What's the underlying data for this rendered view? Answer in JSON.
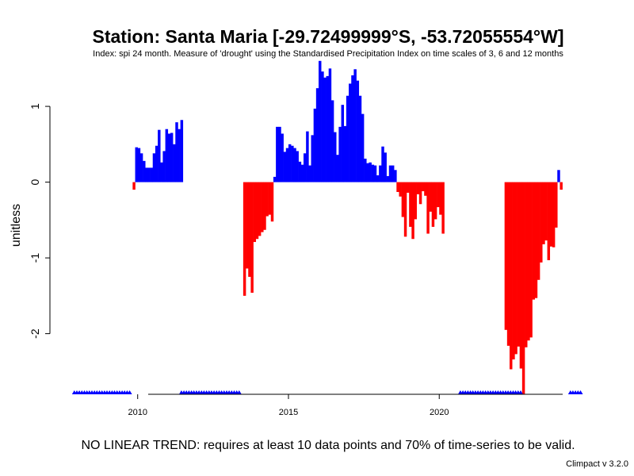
{
  "chart_data": {
    "type": "bar",
    "title": "Station: Santa Maria [-29.72499999°S, -53.72055554°W]",
    "subtitle": "Index: spi 24 month. Measure of 'drought' using the Standardised Precipitation Index on time scales of 3, 6 and 12 months",
    "ylabel": "unitless",
    "xlabel": "",
    "x_ticks": [
      2010,
      2015,
      2020
    ],
    "y_ticks": [
      1,
      0,
      -1,
      -2
    ],
    "xlim": [
      2007.8,
      2024.75
    ],
    "ylim": [
      -2.8,
      1.65
    ],
    "positive_color": "#0000ff",
    "negative_color": "#ff0000",
    "missing_marker_color": "#0000ff",
    "series": [
      {
        "start": 2009.833,
        "step": 0.08333,
        "values": [
          -0.1,
          0.46,
          0.45,
          0.38,
          0.28,
          0.19,
          0.19,
          0.19,
          0.38,
          0.48,
          0.69,
          0.26,
          0.41,
          0.7,
          0.64,
          0.65,
          0.5,
          0.79,
          0.7,
          0.82,
          null,
          null,
          null,
          null,
          null,
          null,
          null,
          null,
          null,
          null,
          null,
          null,
          null,
          null,
          null,
          null,
          null,
          null,
          null,
          null,
          null,
          null,
          null,
          null,
          -1.5,
          -1.14,
          -1.25,
          -1.46,
          -0.79,
          -0.75,
          -0.71,
          -0.66,
          -0.63,
          -0.45,
          -0.43,
          -0.52,
          0.07,
          0.73,
          0.73,
          0.64,
          0.4,
          0.45,
          0.5,
          0.48,
          0.45,
          0.41,
          0.27,
          0.23,
          0.38,
          0.67,
          0.22,
          0.62,
          0.97,
          1.24,
          1.6,
          1.46,
          1.38,
          1.4,
          1.5,
          1.08,
          0.66,
          0.36,
          0.73,
          1.02,
          0.74,
          1.14,
          1.3,
          1.41,
          1.49,
          1.34,
          1.14,
          0.9,
          0.31,
          0.25,
          0.26,
          0.23,
          0.22,
          0.09,
          0.22,
          0.47,
          0.39,
          0.08,
          0.22,
          0.22,
          0.16,
          -0.13,
          -0.19,
          -0.46,
          -0.72,
          -0.14,
          -0.59,
          -0.75,
          -0.49,
          -0.16,
          -0.29,
          -0.12,
          -0.18,
          -0.68,
          -0.39,
          -0.59,
          -0.49,
          -0.33,
          -0.43,
          -0.68,
          null,
          null,
          null,
          null,
          null,
          null,
          null,
          null,
          null,
          null,
          null,
          null,
          null,
          null,
          null,
          null,
          null,
          null,
          null,
          null,
          null,
          null,
          null,
          null,
          -1.95,
          -2.16,
          -2.47,
          -2.34,
          -2.27,
          -2.17,
          -2.46,
          -2.8,
          -2.18,
          -2.09,
          -2.05,
          -1.55,
          -1.53,
          -1.29,
          -1.06,
          -0.82,
          -0.77,
          -1.03,
          -0.85,
          -0.86,
          -0.6,
          0.16,
          -0.1
        ]
      }
    ],
    "missing_ranges": [
      [
        2007.9,
        2009.8
      ],
      [
        2011.45,
        2013.4
      ],
      [
        2020.7,
        2022.75
      ],
      [
        2024.35,
        2024.75
      ]
    ],
    "annotations": [
      "NO LINEAR TREND: requires at least 10 data points and 70% of time-series to be valid.",
      "Climpact v 3.2.0"
    ],
    "grid": false
  },
  "footer": {
    "trend_note": "NO LINEAR TREND: requires at least 10 data points and 70% of time-series to be valid.",
    "version": "Climpact v 3.2.0"
  }
}
